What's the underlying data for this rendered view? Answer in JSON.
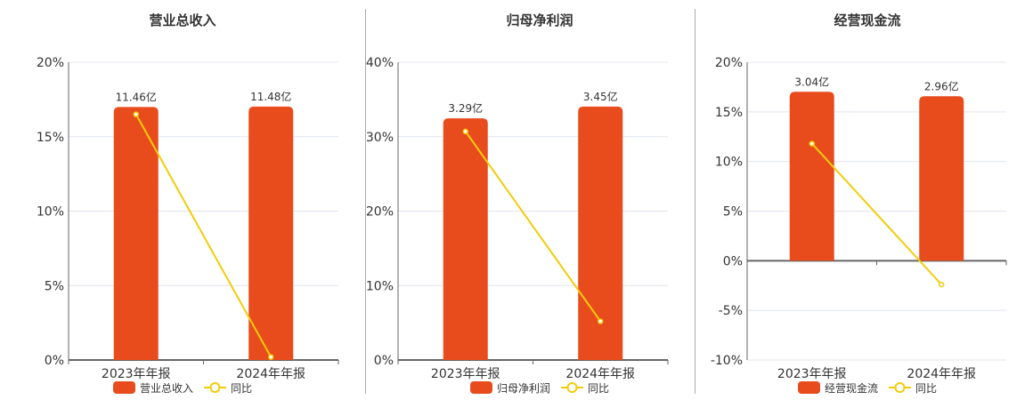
{
  "colors": {
    "bar": "#e84c1c",
    "line": "#f2cc0c",
    "grid": "#e0e4ee",
    "axis": "#666666"
  },
  "chart_data": [
    {
      "type": "bar+line",
      "title": "营业总收入",
      "categories": [
        "2023年年报",
        "2024年年报"
      ],
      "bar_series": {
        "name": "营业总收入",
        "values": [
          11.46,
          11.48
        ],
        "labels": [
          "11.46亿",
          "11.48亿"
        ],
        "unit": "亿"
      },
      "line_series": {
        "name": "同比",
        "values": [
          16.5,
          0.2
        ],
        "unit": "%"
      },
      "y_ticks": [
        "20%",
        "15%",
        "10%",
        "5%",
        "0%"
      ],
      "ylim": [
        0,
        20
      ],
      "grid": true,
      "legend": "bottom"
    },
    {
      "type": "bar+line",
      "title": "归母净利润",
      "categories": [
        "2023年年报",
        "2024年年报"
      ],
      "bar_series": {
        "name": "归母净利润",
        "values": [
          3.29,
          3.45
        ],
        "labels": [
          "3.29亿",
          "3.45亿"
        ],
        "unit": "亿"
      },
      "line_series": {
        "name": "同比",
        "values": [
          30.7,
          5.2
        ],
        "unit": "%"
      },
      "y_ticks": [
        "40%",
        "30%",
        "20%",
        "10%",
        "0%"
      ],
      "ylim": [
        0,
        40
      ],
      "grid": true,
      "legend": "bottom"
    },
    {
      "type": "bar+line",
      "title": "经营现金流",
      "categories": [
        "2023年年报",
        "2024年年报"
      ],
      "bar_series": {
        "name": "经营现金流",
        "values": [
          3.04,
          2.96
        ],
        "labels": [
          "3.04亿",
          "2.96亿"
        ],
        "unit": "亿"
      },
      "line_series": {
        "name": "同比",
        "values": [
          11.8,
          -2.4
        ],
        "unit": "%"
      },
      "y_ticks": [
        "20%",
        "15%",
        "10%",
        "5%",
        "0%",
        "-5%",
        "-10%"
      ],
      "ylim": [
        -10,
        20
      ],
      "grid": true,
      "legend": "bottom"
    }
  ]
}
